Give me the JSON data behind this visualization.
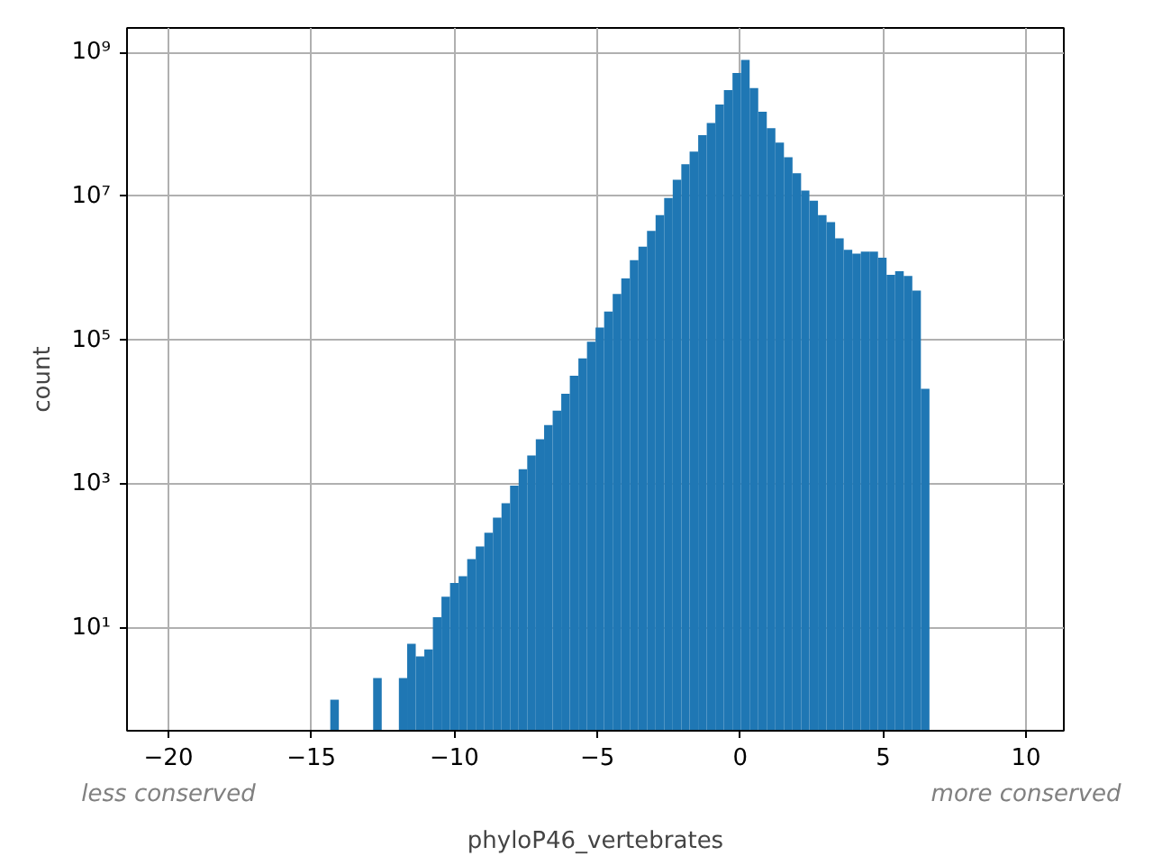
{
  "chart_data": {
    "type": "histogram",
    "xlabel": "phyloP46_vertebrates",
    "ylabel": "count",
    "annotations": [
      "less conserved",
      "more conserved"
    ],
    "color": "#1f77b4",
    "bins": [
      -14.34,
      -14.04,
      -13.74,
      -13.44,
      -13.14,
      -12.84,
      -12.54,
      -12.24,
      -11.94,
      -11.65,
      -11.35,
      -11.05,
      -10.75,
      -10.45,
      -10.15,
      -9.85,
      -9.55,
      -9.25,
      -8.95,
      -8.65,
      -8.35,
      -8.05,
      -7.75,
      -7.45,
      -7.15,
      -6.86,
      -6.56,
      -6.26,
      -5.96,
      -5.66,
      -5.36,
      -5.06,
      -4.76,
      -4.46,
      -4.16,
      -3.86,
      -3.56,
      -3.26,
      -2.96,
      -2.66,
      -2.36,
      -2.06,
      -1.77,
      -1.47,
      -1.17,
      -0.87,
      -0.57,
      -0.27,
      0.03,
      0.33,
      0.63,
      0.93,
      1.23,
      1.53,
      1.83,
      2.13,
      2.42,
      2.72,
      3.02,
      3.32,
      3.62,
      3.92,
      4.22,
      4.52,
      4.82,
      5.12,
      5.42,
      5.72,
      6.02,
      6.32,
      6.62
    ],
    "values": [
      1,
      null,
      null,
      null,
      null,
      2,
      null,
      null,
      2,
      6,
      4,
      5,
      14,
      27,
      42,
      52,
      90,
      135,
      210,
      340,
      540,
      950,
      1600,
      2500,
      4200,
      6600,
      10500,
      18000,
      32000,
      56000,
      95000,
      150000,
      250000,
      440000,
      720000,
      1300000,
      2000000,
      3300000,
      5500000,
      9500000,
      17000000,
      28000000,
      42000000,
      71000000,
      105000000,
      190000000,
      300000000,
      520000000,
      790000000,
      320000000,
      150000000,
      89000000,
      56000000,
      35000000,
      21000000,
      12000000,
      8700000,
      5500000,
      4400000,
      2600000,
      1800000,
      1600000,
      1700000,
      1700000,
      1400000,
      810000,
      910000,
      780000,
      490000,
      21000
    ],
    "log": "y",
    "grid": true,
    "xlim": [
      -21.45,
      11.32
    ],
    "xticks": [
      {
        "value": -20,
        "label": "−20"
      },
      {
        "value": -15,
        "label": "−15"
      },
      {
        "value": -10,
        "label": "−10"
      },
      {
        "value": -5,
        "label": "−5"
      },
      0,
      5,
      10
    ],
    "ylim": [
      0.37,
      2200000000
    ],
    "yticks": [
      {
        "value": 10,
        "label": "10¹"
      },
      {
        "value": 1000,
        "label": "10³"
      },
      {
        "value": 100000,
        "label": "10⁵"
      },
      {
        "value": 10000000,
        "label": "10⁷"
      },
      {
        "value": 1000000000,
        "label": "10⁹"
      }
    ]
  }
}
